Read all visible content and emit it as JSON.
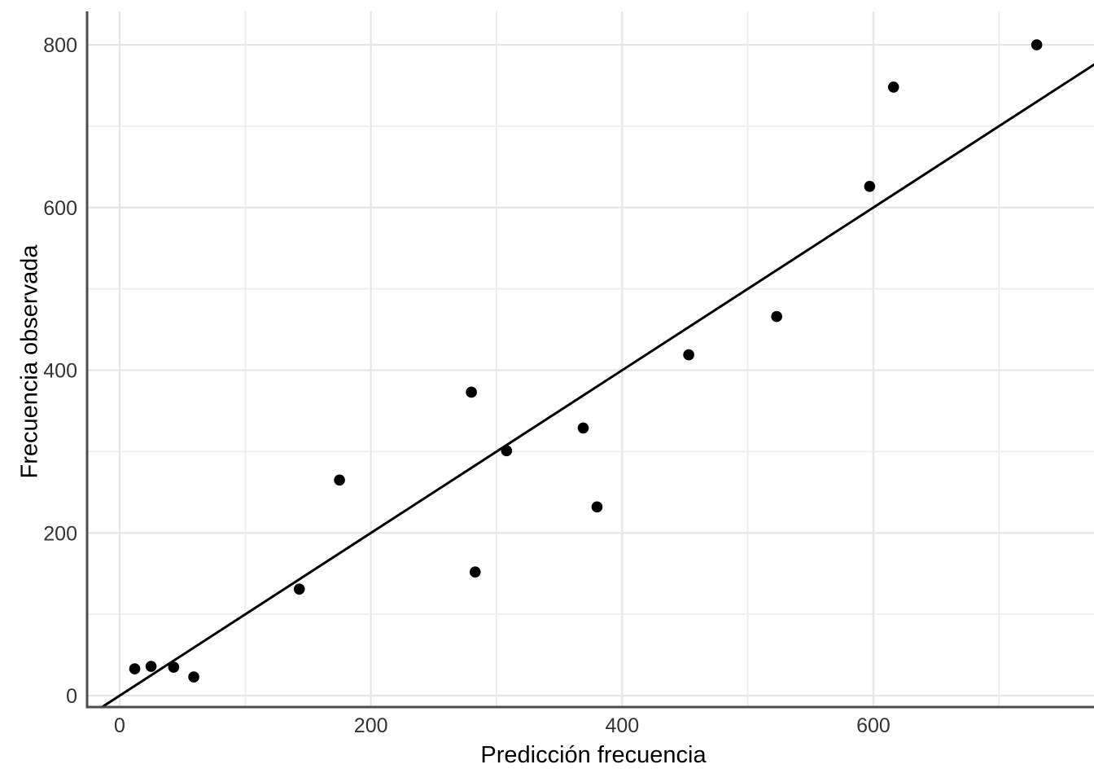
{
  "figure": {
    "background": "#ffffff"
  },
  "chart_data": {
    "type": "scatter",
    "title": "",
    "xlabel": "Predicción frecuencia",
    "ylabel": "Frecuencia observada",
    "x_ticks": [
      0,
      200,
      400,
      600
    ],
    "y_ticks": [
      0,
      200,
      400,
      600,
      800
    ],
    "x_minor_ticks": [
      100,
      300,
      500,
      700
    ],
    "y_minor_ticks": [
      100,
      300,
      500,
      700
    ],
    "xlim": [
      -26,
      776
    ],
    "ylim": [
      -14,
      841
    ],
    "grid": "major+minor",
    "legend": "none",
    "reference_line": {
      "type": "identity",
      "slope": 1,
      "intercept": 0
    },
    "points": [
      [
        12,
        33
      ],
      [
        25,
        36
      ],
      [
        43,
        35
      ],
      [
        59,
        23
      ],
      [
        143,
        131
      ],
      [
        175,
        265
      ],
      [
        280,
        373
      ],
      [
        283,
        152
      ],
      [
        308,
        301
      ],
      [
        369,
        329
      ],
      [
        380,
        232
      ],
      [
        453,
        419
      ],
      [
        523,
        466
      ],
      [
        597,
        626
      ],
      [
        616,
        748
      ],
      [
        730,
        800
      ]
    ],
    "colors": {
      "point": "#000000",
      "line": "#000000",
      "grid_major": "#e5e5e5",
      "grid_minor": "#ededed",
      "axis": "#4d4d4d",
      "tick_label": "#333333",
      "axis_title": "#000000",
      "background": "#ffffff"
    }
  }
}
